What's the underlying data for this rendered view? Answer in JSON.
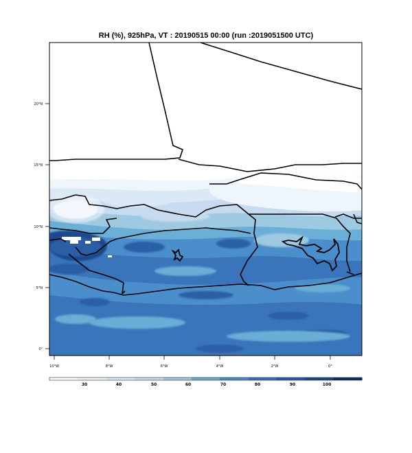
{
  "title": "RH (%), 925hPa, VT : 20190515  00:00 (run :2019051500 UTC)",
  "map": {
    "variable": "RH (%)",
    "level": "925hPa",
    "valid_time": "20190515 00:00",
    "run": "2019051500 UTC",
    "lat_labels": [
      "0°",
      "5°N",
      "10°N",
      "15°N",
      "20°N"
    ],
    "lon_labels": [
      "10°W",
      "8°W",
      "6°W",
      "4°W",
      "2°W",
      "0°"
    ]
  },
  "colorbar": {
    "labels": [
      "30",
      "40",
      "50",
      "60",
      "70",
      "80",
      "90",
      "100"
    ],
    "colors": [
      "#ffffff",
      "#eef5fb",
      "#dbe9f6",
      "#c6dbef",
      "#9ecae1",
      "#6baed6",
      "#4a8ecb",
      "#3a75bb",
      "#2a5fa5",
      "#1c4a8c",
      "#0d2f6b"
    ]
  },
  "colors": {
    "land_boundary": "#000000",
    "frame": "#000000"
  }
}
